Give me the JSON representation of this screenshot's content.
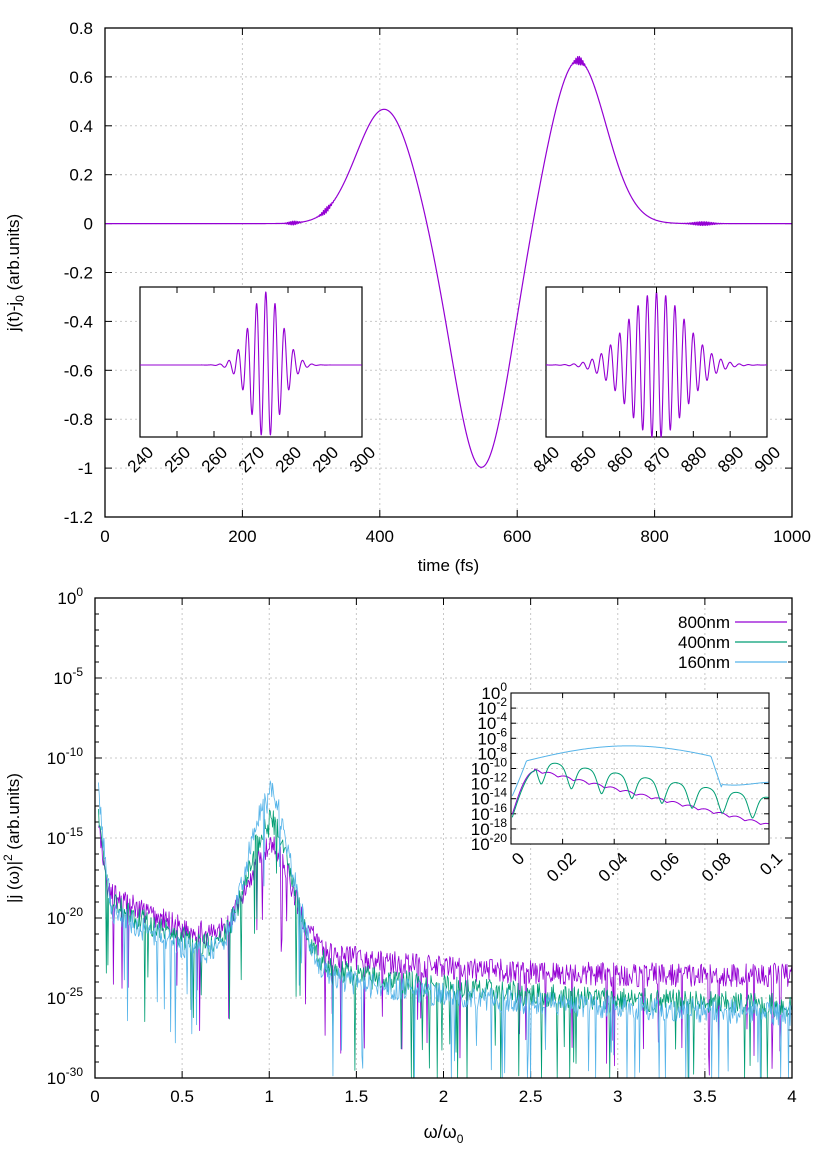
{
  "chart_data": [
    {
      "type": "line",
      "xlabel": "time (fs)",
      "ylabel_main": "j(t)-j",
      "ylabel_sub": "0",
      "ylabel_tail": " (arb.units)",
      "xlim": [
        0,
        1000
      ],
      "ylim": [
        -1.2,
        0.8
      ],
      "xticks": [
        0,
        200,
        400,
        600,
        800,
        1000
      ],
      "yticks": [
        -1.2,
        -1,
        -0.8,
        -0.6,
        -0.4,
        -0.2,
        0,
        0.2,
        0.4,
        0.6,
        0.8
      ],
      "grid": true,
      "series_color": "#9400d3",
      "pulse_lobes": [
        {
          "center": 407,
          "sigma": 58,
          "amplitude": 0.47
        },
        {
          "center": 548,
          "sigma": 58,
          "amplitude": -1.0
        },
        {
          "center": 688,
          "sigma": 58,
          "amplitude": 0.67
        }
      ],
      "insets": [
        {
          "xlim": [
            240,
            300
          ],
          "xticks": [
            240,
            250,
            260,
            270,
            280,
            290,
            300
          ],
          "burst_center": 274,
          "burst_width": 6,
          "cycles_per_unit": 0.4
        },
        {
          "xlim": [
            840,
            900
          ],
          "xticks": [
            840,
            850,
            860,
            870,
            880,
            890,
            900
          ],
          "burst_center": 870,
          "burst_width": 11,
          "cycles_per_unit": 0.4
        }
      ]
    },
    {
      "type": "line",
      "yscale": "log",
      "xlabel_main": "ω/ω",
      "xlabel_sub": "0",
      "ylabel_main": "|j (ω)|",
      "ylabel_sup": "2",
      "ylabel_tail": " (arb.units)",
      "xlim": [
        0,
        4
      ],
      "ylim_exp": [
        -30,
        0
      ],
      "xticks": [
        "0",
        "0.5",
        "1",
        "1.5",
        "2",
        "2.5",
        "3",
        "3.5",
        "4"
      ],
      "yticks_exp": [
        "0",
        "-5",
        "-10",
        "-15",
        "-20",
        "-25",
        "-30"
      ],
      "grid": true,
      "legend_position": "top-right",
      "series": [
        {
          "name": "800nm",
          "color": "#9400d3",
          "peak_exp": -16.5,
          "floor_exp": -24.3,
          "low_exp": -12
        },
        {
          "name": "400nm",
          "color": "#009e73",
          "peak_exp": -15.2,
          "floor_exp": -25.3,
          "low_exp": -11
        },
        {
          "name": "160nm",
          "color": "#56b4e9",
          "peak_exp": -13.6,
          "floor_exp": -25.8,
          "low_exp": -9.5
        }
      ],
      "inset": {
        "xlim": [
          0,
          0.1
        ],
        "ylim_exp": [
          -20,
          0
        ],
        "xticks": [
          "0",
          "0.02",
          "0.04",
          "0.06",
          "0.08",
          "0.1"
        ],
        "yticks_exp": [
          "0",
          "-2",
          "-4",
          "-6",
          "-8",
          "-10",
          "-12",
          "-14",
          "-16",
          "-18",
          "-20"
        ]
      }
    }
  ]
}
